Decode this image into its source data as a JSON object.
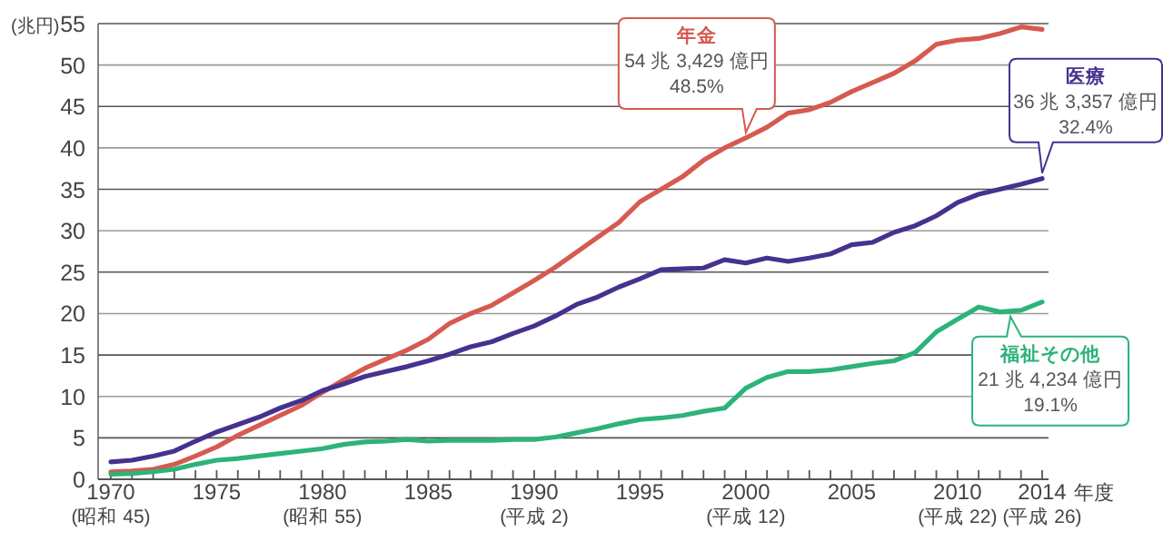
{
  "chart_data": {
    "type": "line",
    "ylabel": "(兆円)",
    "xlabel": "年度",
    "grid": "y",
    "legend": false,
    "marker": "none",
    "line_style": "solid",
    "x": [
      1970,
      1971,
      1972,
      1973,
      1974,
      1975,
      1976,
      1977,
      1978,
      1979,
      1980,
      1981,
      1982,
      1983,
      1984,
      1985,
      1986,
      1987,
      1988,
      1989,
      1990,
      1991,
      1992,
      1993,
      1994,
      1995,
      1996,
      1997,
      1998,
      1999,
      2000,
      2001,
      2002,
      2003,
      2004,
      2005,
      2006,
      2007,
      2008,
      2009,
      2010,
      2011,
      2012,
      2013,
      2014
    ],
    "xlim": [
      1969.4,
      2014.3
    ],
    "ylim": [
      0,
      55
    ],
    "yticks": [
      0,
      5,
      10,
      15,
      20,
      25,
      30,
      35,
      40,
      45,
      50,
      55
    ],
    "xticks": [
      {
        "value": 1970,
        "label": "1970\n(昭和 45)"
      },
      {
        "value": 1971,
        "label": null
      },
      {
        "value": 1972,
        "label": null
      },
      {
        "value": 1973,
        "label": null
      },
      {
        "value": 1974,
        "label": null
      },
      {
        "value": 1975,
        "label": "1975"
      },
      {
        "value": 1976,
        "label": null
      },
      {
        "value": 1977,
        "label": null
      },
      {
        "value": 1978,
        "label": null
      },
      {
        "value": 1979,
        "label": null
      },
      {
        "value": 1980,
        "label": "1980\n(昭和 55)"
      },
      {
        "value": 1981,
        "label": null
      },
      {
        "value": 1982,
        "label": null
      },
      {
        "value": 1983,
        "label": null
      },
      {
        "value": 1984,
        "label": null
      },
      {
        "value": 1985,
        "label": "1985"
      },
      {
        "value": 1986,
        "label": null
      },
      {
        "value": 1987,
        "label": null
      },
      {
        "value": 1988,
        "label": null
      },
      {
        "value": 1989,
        "label": null
      },
      {
        "value": 1990,
        "label": "1990\n(平成 2)"
      },
      {
        "value": 1991,
        "label": null
      },
      {
        "value": 1992,
        "label": null
      },
      {
        "value": 1993,
        "label": null
      },
      {
        "value": 1994,
        "label": null
      },
      {
        "value": 1995,
        "label": "1995"
      },
      {
        "value": 1996,
        "label": null
      },
      {
        "value": 1997,
        "label": null
      },
      {
        "value": 1998,
        "label": null
      },
      {
        "value": 1999,
        "label": null
      },
      {
        "value": 2000,
        "label": "2000\n(平成 12)"
      },
      {
        "value": 2001,
        "label": null
      },
      {
        "value": 2002,
        "label": null
      },
      {
        "value": 2003,
        "label": null
      },
      {
        "value": 2004,
        "label": null
      },
      {
        "value": 2005,
        "label": "2005"
      },
      {
        "value": 2006,
        "label": null
      },
      {
        "value": 2007,
        "label": null
      },
      {
        "value": 2008,
        "label": null
      },
      {
        "value": 2009,
        "label": null
      },
      {
        "value": 2010,
        "label": "2010\n(平成 22)"
      },
      {
        "value": 2011,
        "label": null
      },
      {
        "value": 2012,
        "label": null
      },
      {
        "value": 2013,
        "label": null
      },
      {
        "value": 2014,
        "label": "2014\n(平成 26)"
      }
    ],
    "series": [
      {
        "name": "年金",
        "color": "#d65a50",
        "values": [
          0.9,
          1.0,
          1.2,
          1.8,
          2.8,
          3.9,
          5.3,
          6.5,
          7.7,
          8.9,
          10.5,
          12.0,
          13.4,
          14.5,
          15.6,
          16.9,
          18.8,
          20.0,
          21.0,
          22.5,
          24.0,
          25.6,
          27.4,
          29.2,
          31.0,
          33.5,
          35.0,
          36.5,
          38.5,
          40.0,
          41.2,
          42.5,
          44.2,
          44.6,
          45.5,
          46.8,
          47.9,
          49.0,
          50.5,
          52.5,
          53.0,
          53.2,
          53.8,
          54.6,
          54.3
        ]
      },
      {
        "name": "医療",
        "color": "#47318f",
        "values": [
          2.1,
          2.3,
          2.8,
          3.4,
          4.6,
          5.7,
          6.6,
          7.5,
          8.6,
          9.5,
          10.7,
          11.5,
          12.4,
          13.0,
          13.6,
          14.3,
          15.1,
          16.0,
          16.6,
          17.6,
          18.5,
          19.7,
          21.1,
          22.0,
          23.2,
          24.2,
          25.3,
          25.4,
          25.5,
          26.5,
          26.1,
          26.7,
          26.3,
          26.7,
          27.2,
          28.3,
          28.6,
          29.8,
          30.6,
          31.8,
          33.4,
          34.4,
          35.0,
          35.6,
          36.3
        ]
      },
      {
        "name": "福祉その他",
        "color": "#2db37a",
        "values": [
          0.6,
          0.7,
          0.9,
          1.2,
          1.8,
          2.3,
          2.5,
          2.8,
          3.1,
          3.4,
          3.7,
          4.2,
          4.5,
          4.6,
          4.8,
          4.6,
          4.7,
          4.7,
          4.7,
          4.8,
          4.8,
          5.1,
          5.6,
          6.1,
          6.7,
          7.2,
          7.4,
          7.7,
          8.2,
          8.6,
          11.0,
          12.3,
          13.0,
          13.0,
          13.2,
          13.6,
          14.0,
          14.3,
          15.3,
          17.8,
          19.3,
          20.8,
          20.2,
          20.4,
          21.4
        ]
      }
    ],
    "annotations": [
      "54 兆 3,429 億円\n48.5%",
      "36 兆 3,357 億円\n32.4%",
      "21 兆 4,234 億円\n19.1%"
    ]
  }
}
